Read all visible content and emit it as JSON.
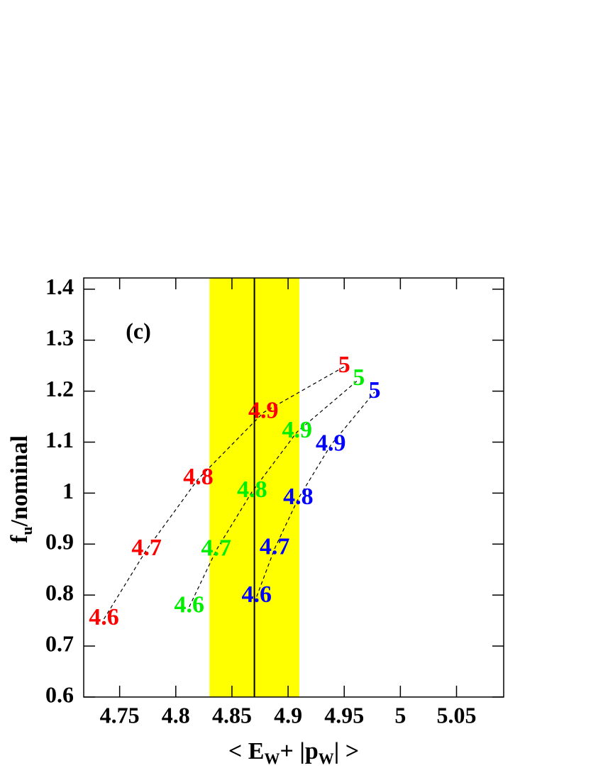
{
  "chart_data": {
    "type": "scatter",
    "annotation": "(c)",
    "xlabel": [
      "< E",
      "W",
      "+ |p",
      "W",
      "| >"
    ],
    "ylabel": [
      "f",
      "u",
      "/nominal"
    ],
    "xlim": [
      4.718,
      5.092
    ],
    "ylim": [
      0.6,
      1.422
    ],
    "xticks": [
      4.75,
      4.8,
      4.85,
      4.9,
      4.95,
      5,
      5.05
    ],
    "yticks": [
      0.6,
      0.7,
      0.8,
      0.9,
      1,
      1.1,
      1.2,
      1.3,
      1.4
    ],
    "band": [
      4.83,
      4.91
    ],
    "band_color": "#ffff00",
    "vline": 4.87,
    "series": [
      {
        "color": "#ff0000",
        "labels": [
          "4.6",
          "4.7",
          "4.8",
          "4.9",
          "5"
        ],
        "x": [
          4.736,
          4.774,
          4.82,
          4.878,
          4.95
        ],
        "values": [
          0.753,
          0.889,
          1.028,
          1.158,
          1.248
        ]
      },
      {
        "color": "#00ee00",
        "labels": [
          "4.6",
          "4.7",
          "4.8",
          "4.9",
          "5"
        ],
        "x": [
          4.812,
          4.836,
          4.868,
          4.908,
          4.963
        ],
        "values": [
          0.777,
          0.888,
          1.003,
          1.12,
          1.223
        ]
      },
      {
        "color": "#0000ff",
        "labels": [
          "4.6",
          "4.7",
          "4.8",
          "4.9",
          "5"
        ],
        "x": [
          4.872,
          4.888,
          4.909,
          4.938,
          4.977
        ],
        "values": [
          0.797,
          0.891,
          0.989,
          1.094,
          1.198
        ]
      }
    ]
  }
}
